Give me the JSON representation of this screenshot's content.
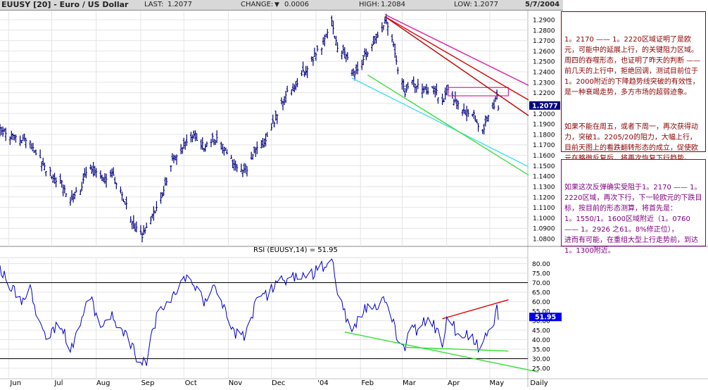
{
  "header": {
    "symbol": "EUUSY [20] - Euro / US Dollar",
    "last_label": "LAST:",
    "last_value": "1.2077",
    "change_label": "CHANGE:",
    "change_arrow": "▼",
    "change_value": "0.0006",
    "high_label": "HIGH:",
    "high_value": "1.2084",
    "low_label": "LOW:",
    "low_value": "1.2077",
    "date": "5/7/2004"
  },
  "colors": {
    "price": "#000080",
    "rsi": "#0000cc",
    "magenta": "#e0209c",
    "red": "#e00000",
    "dark_red": "#c00000",
    "cyan": "#40e0f0",
    "green": "#40e040",
    "rsi_red": "#e00000",
    "rsi_green": "#30e030",
    "last_box": "#000080",
    "rsi_box": "#0000ee"
  },
  "notes": {
    "note1_p1": "1。2170 —— 1。2220区域证明了是欧元，可能中的延展上行，的关键阻力区域。周四的吞噬形态，也证明了昨天的判断 —— 前几天的上行中，拒绝回调，测试目前位于1。2000附近的下降趋势线突破的有效性，是一种衰竭走势，多方市场的超弱迹象。",
    "note1_p2": "如果不能在周五，或者下周一，再次获得动力，突破1。2205/20的阻力，大幅上行，目前天图上的看跌翻转形态的成立，促使欧元在略微反复后，将再次恢复下行趋势。",
    "note2": "如果这次反弹确实受阻于1。2170 —— 1。2220区域，再次下行，下一轮欧元的下跌目标，按目前的形态测算，将首先是：\n1。1550/1。1600区域附近（1。0760 —— 1。2926 之61。8%修正位），\n进而有可能，在重组大型上行走势前，到达1。1300附近。"
  },
  "chart_data": [
    {
      "type": "line",
      "title": "EUUSY [20] - Euro / US Dollar",
      "ylim": [
        1.075,
        1.295
      ],
      "yticks": [
        1.08,
        1.09,
        1.1,
        1.11,
        1.12,
        1.13,
        1.14,
        1.15,
        1.16,
        1.17,
        1.18,
        1.19,
        1.2,
        1.21,
        1.22,
        1.23,
        1.24,
        1.25,
        1.26,
        1.27,
        1.28,
        1.29
      ],
      "ytick_labels": [
        "1.0800",
        "1.0900",
        "1.1000",
        "1.1100",
        "1.1200",
        "1.1300",
        "1.1400",
        "1.1500",
        "1.1600",
        "1.1700",
        "1.1800",
        "1.1900",
        "1.2000",
        "",
        "1.2200",
        "1.2300",
        "1.2400",
        "1.2500",
        "1.2600",
        "1.2700",
        "1.2800",
        "1.2900"
      ],
      "last_label": "1.2077",
      "last_value": 1.2077,
      "x_months": [
        "Jun",
        "Jul",
        "Aug",
        "Sep",
        "Oct",
        "Nov",
        "Dec",
        "'04",
        "Feb",
        "Mar",
        "Apr",
        "May",
        "Daily"
      ],
      "price_anchors": [
        {
          "date": "2003-05-26",
          "value": 1.185
        },
        {
          "date": "2003-06-02",
          "value": 1.178
        },
        {
          "date": "2003-06-16",
          "value": 1.172
        },
        {
          "date": "2003-06-26",
          "value": 1.148
        },
        {
          "date": "2003-07-08",
          "value": 1.132
        },
        {
          "date": "2003-07-14",
          "value": 1.118
        },
        {
          "date": "2003-07-21",
          "value": 1.128
        },
        {
          "date": "2003-07-28",
          "value": 1.15
        },
        {
          "date": "2003-08-04",
          "value": 1.138
        },
        {
          "date": "2003-08-12",
          "value": 1.142
        },
        {
          "date": "2003-08-20",
          "value": 1.118
        },
        {
          "date": "2003-08-28",
          "value": 1.09
        },
        {
          "date": "2003-09-02",
          "value": 1.082
        },
        {
          "date": "2003-09-08",
          "value": 1.099
        },
        {
          "date": "2003-09-16",
          "value": 1.122
        },
        {
          "date": "2003-09-22",
          "value": 1.152
        },
        {
          "date": "2003-10-01",
          "value": 1.17
        },
        {
          "date": "2003-10-08",
          "value": 1.18
        },
        {
          "date": "2003-10-15",
          "value": 1.168
        },
        {
          "date": "2003-10-22",
          "value": 1.177
        },
        {
          "date": "2003-10-28",
          "value": 1.17
        },
        {
          "date": "2003-11-04",
          "value": 1.152
        },
        {
          "date": "2003-11-10",
          "value": 1.145
        },
        {
          "date": "2003-11-14",
          "value": 1.148
        },
        {
          "date": "2003-11-20",
          "value": 1.165
        },
        {
          "date": "2003-11-27",
          "value": 1.174
        },
        {
          "date": "2003-12-05",
          "value": 1.2
        },
        {
          "date": "2003-12-12",
          "value": 1.22
        },
        {
          "date": "2003-12-19",
          "value": 1.23
        },
        {
          "date": "2003-12-26",
          "value": 1.245
        },
        {
          "date": "2004-01-05",
          "value": 1.265
        },
        {
          "date": "2004-01-12",
          "value": 1.288
        },
        {
          "date": "2004-01-16",
          "value": 1.262
        },
        {
          "date": "2004-01-21",
          "value": 1.258
        },
        {
          "date": "2004-01-27",
          "value": 1.238
        },
        {
          "date": "2004-02-02",
          "value": 1.25
        },
        {
          "date": "2004-02-10",
          "value": 1.27
        },
        {
          "date": "2004-02-16",
          "value": 1.278
        },
        {
          "date": "2004-02-18",
          "value": 1.29
        },
        {
          "date": "2004-02-23",
          "value": 1.272
        },
        {
          "date": "2004-02-27",
          "value": 1.24
        },
        {
          "date": "2004-03-03",
          "value": 1.22
        },
        {
          "date": "2004-03-08",
          "value": 1.232
        },
        {
          "date": "2004-03-12",
          "value": 1.226
        },
        {
          "date": "2004-03-17",
          "value": 1.222
        },
        {
          "date": "2004-03-23",
          "value": 1.224
        },
        {
          "date": "2004-03-29",
          "value": 1.211
        },
        {
          "date": "2004-04-02",
          "value": 1.225
        },
        {
          "date": "2004-04-07",
          "value": 1.212
        },
        {
          "date": "2004-04-13",
          "value": 1.198
        },
        {
          "date": "2004-04-19",
          "value": 1.202
        },
        {
          "date": "2004-04-23",
          "value": 1.185
        },
        {
          "date": "2004-04-27",
          "value": 1.186
        },
        {
          "date": "2004-04-30",
          "value": 1.195
        },
        {
          "date": "2004-05-04",
          "value": 1.205
        },
        {
          "date": "2004-05-06",
          "value": 1.22
        },
        {
          "date": "2004-05-07",
          "value": 1.2077
        }
      ],
      "trendlines": [
        {
          "color": "magenta",
          "from": {
            "date": "2004-02-18",
            "value": 1.295
          },
          "to": {
            "date": "2004-05-28",
            "value": 1.227
          }
        },
        {
          "color": "red",
          "from": {
            "date": "2004-02-18",
            "value": 1.293
          },
          "to": {
            "date": "2004-05-28",
            "value": 1.213
          }
        },
        {
          "color": "dark_red",
          "from": {
            "date": "2004-02-18",
            "value": 1.293
          },
          "to": {
            "date": "2004-05-28",
            "value": 1.198
          }
        },
        {
          "color": "cyan",
          "from": {
            "date": "2004-01-26",
            "value": 1.234
          },
          "to": {
            "date": "2004-05-28",
            "value": 1.149
          }
        },
        {
          "color": "green",
          "from": {
            "date": "2004-02-06",
            "value": 1.237
          },
          "to": {
            "date": "2004-05-28",
            "value": 1.141
          }
        }
      ],
      "zone": {
        "color": "magenta",
        "from": "2004-04-02",
        "to": "2004-05-14",
        "low": 1.217,
        "high": 1.225
      }
    },
    {
      "type": "line",
      "title": "RSI (EUUSY,14) = 51.95",
      "ylim": [
        22,
        83
      ],
      "yticks": [
        25,
        30,
        35,
        40,
        45,
        50,
        55,
        60,
        65,
        70,
        75,
        80
      ],
      "ytick_labels": [
        "25.00",
        "30.00",
        "35.00",
        "40.00",
        "45.00",
        "50.00",
        "55.00",
        "60.00",
        "65.00",
        "70.00",
        "75.00",
        "80.00"
      ],
      "reference_lines": [
        30,
        70
      ],
      "last_label": "51.95",
      "last_value": 51.95,
      "rsi_anchors": [
        {
          "date": "2003-05-26",
          "value": 76
        },
        {
          "date": "2003-06-02",
          "value": 69
        },
        {
          "date": "2003-06-09",
          "value": 60
        },
        {
          "date": "2003-06-16",
          "value": 66
        },
        {
          "date": "2003-06-26",
          "value": 42
        },
        {
          "date": "2003-07-08",
          "value": 48
        },
        {
          "date": "2003-07-14",
          "value": 33
        },
        {
          "date": "2003-07-28",
          "value": 63
        },
        {
          "date": "2003-08-04",
          "value": 45
        },
        {
          "date": "2003-08-12",
          "value": 52
        },
        {
          "date": "2003-08-22",
          "value": 42
        },
        {
          "date": "2003-09-01",
          "value": 27
        },
        {
          "date": "2003-09-05",
          "value": 29
        },
        {
          "date": "2003-09-12",
          "value": 52
        },
        {
          "date": "2003-09-22",
          "value": 63
        },
        {
          "date": "2003-10-01",
          "value": 72
        },
        {
          "date": "2003-10-08",
          "value": 70
        },
        {
          "date": "2003-10-15",
          "value": 61
        },
        {
          "date": "2003-10-22",
          "value": 70
        },
        {
          "date": "2003-10-28",
          "value": 57
        },
        {
          "date": "2003-11-04",
          "value": 46
        },
        {
          "date": "2003-11-10",
          "value": 40
        },
        {
          "date": "2003-11-14",
          "value": 44
        },
        {
          "date": "2003-11-20",
          "value": 60
        },
        {
          "date": "2003-11-27",
          "value": 63
        },
        {
          "date": "2003-12-05",
          "value": 70
        },
        {
          "date": "2003-12-12",
          "value": 72
        },
        {
          "date": "2003-12-19",
          "value": 74
        },
        {
          "date": "2003-12-26",
          "value": 72
        },
        {
          "date": "2004-01-05",
          "value": 78
        },
        {
          "date": "2004-01-12",
          "value": 82
        },
        {
          "date": "2004-01-16",
          "value": 64
        },
        {
          "date": "2004-01-21",
          "value": 54
        },
        {
          "date": "2004-01-26",
          "value": 44
        },
        {
          "date": "2004-02-02",
          "value": 55
        },
        {
          "date": "2004-02-10",
          "value": 58
        },
        {
          "date": "2004-02-18",
          "value": 60
        },
        {
          "date": "2004-02-23",
          "value": 50
        },
        {
          "date": "2004-02-27",
          "value": 41
        },
        {
          "date": "2004-03-03",
          "value": 36
        },
        {
          "date": "2004-03-08",
          "value": 48
        },
        {
          "date": "2004-03-12",
          "value": 44
        },
        {
          "date": "2004-03-17",
          "value": 50
        },
        {
          "date": "2004-03-23",
          "value": 47
        },
        {
          "date": "2004-03-29",
          "value": 38
        },
        {
          "date": "2004-04-02",
          "value": 54
        },
        {
          "date": "2004-04-07",
          "value": 45
        },
        {
          "date": "2004-04-13",
          "value": 43
        },
        {
          "date": "2004-04-19",
          "value": 41
        },
        {
          "date": "2004-04-23",
          "value": 36
        },
        {
          "date": "2004-04-27",
          "value": 40
        },
        {
          "date": "2004-04-30",
          "value": 45
        },
        {
          "date": "2004-05-04",
          "value": 50
        },
        {
          "date": "2004-05-06",
          "value": 58
        },
        {
          "date": "2004-05-07",
          "value": 51.95
        }
      ],
      "trendlines": [
        {
          "color": "rsi_red",
          "from": {
            "date": "2004-03-29",
            "value": 51
          },
          "to": {
            "date": "2004-05-14",
            "value": 61
          }
        },
        {
          "color": "rsi_green",
          "from": {
            "date": "2004-01-21",
            "value": 44
          },
          "to": {
            "date": "2004-06-04",
            "value": 23
          }
        },
        {
          "color": "rsi_green",
          "from": {
            "date": "2004-03-03",
            "value": 36
          },
          "to": {
            "date": "2004-05-14",
            "value": 34
          }
        }
      ]
    }
  ]
}
